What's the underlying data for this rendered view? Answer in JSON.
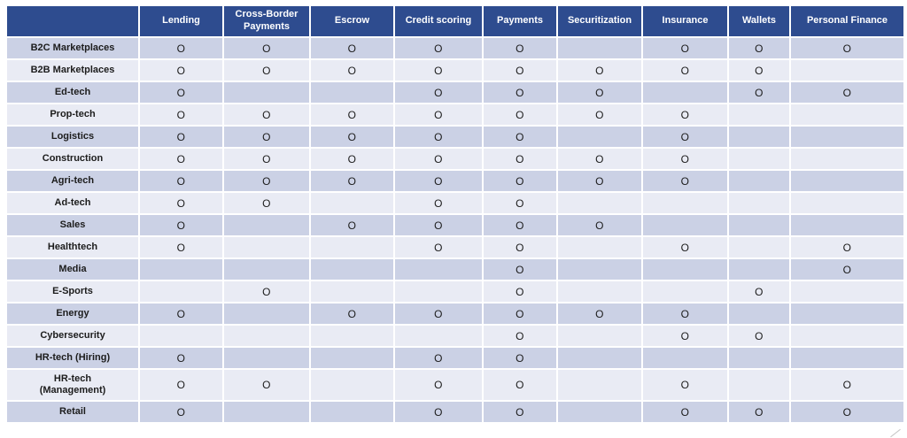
{
  "theme": {
    "header_bg": "#2E4C8F",
    "header_text": "#FFFFFF",
    "row_band_dark": "#CBD1E5",
    "row_band_light": "#E9EBF4",
    "cell_text": "#1C1C1C",
    "grid_gap": "#FFFFFF"
  },
  "table": {
    "mark": "O",
    "corner_label": "",
    "columns": [
      "Lending",
      "Cross-Border Payments",
      "Escrow",
      "Credit scoring",
      "Payments",
      "Securitization",
      "Insurance",
      "Wallets",
      "Personal Finance"
    ],
    "rows": [
      {
        "label": "B2C Marketplaces",
        "cells": [
          1,
          1,
          1,
          1,
          1,
          0,
          1,
          1,
          1
        ]
      },
      {
        "label": "B2B Marketplaces",
        "cells": [
          1,
          1,
          1,
          1,
          1,
          1,
          1,
          1,
          0
        ]
      },
      {
        "label": "Ed-tech",
        "cells": [
          1,
          0,
          0,
          1,
          1,
          1,
          0,
          1,
          1
        ]
      },
      {
        "label": "Prop-tech",
        "cells": [
          1,
          1,
          1,
          1,
          1,
          1,
          1,
          0,
          0
        ]
      },
      {
        "label": "Logistics",
        "cells": [
          1,
          1,
          1,
          1,
          1,
          0,
          1,
          0,
          0
        ]
      },
      {
        "label": "Construction",
        "cells": [
          1,
          1,
          1,
          1,
          1,
          1,
          1,
          0,
          0
        ]
      },
      {
        "label": "Agri-tech",
        "cells": [
          1,
          1,
          1,
          1,
          1,
          1,
          1,
          0,
          0
        ]
      },
      {
        "label": "Ad-tech",
        "cells": [
          1,
          1,
          0,
          1,
          1,
          0,
          0,
          0,
          0
        ]
      },
      {
        "label": "Sales",
        "cells": [
          1,
          0,
          1,
          1,
          1,
          1,
          0,
          0,
          0
        ]
      },
      {
        "label": "Healthtech",
        "cells": [
          1,
          0,
          0,
          1,
          1,
          0,
          1,
          0,
          1
        ]
      },
      {
        "label": "Media",
        "cells": [
          0,
          0,
          0,
          0,
          1,
          0,
          0,
          0,
          1
        ]
      },
      {
        "label": "E-Sports",
        "cells": [
          0,
          1,
          0,
          0,
          1,
          0,
          0,
          1,
          0
        ]
      },
      {
        "label": "Energy",
        "cells": [
          1,
          0,
          1,
          1,
          1,
          1,
          1,
          0,
          0
        ]
      },
      {
        "label": "Cybersecurity",
        "cells": [
          0,
          0,
          0,
          0,
          1,
          0,
          1,
          1,
          0
        ]
      },
      {
        "label": "HR-tech (Hiring)",
        "cells": [
          1,
          0,
          0,
          1,
          1,
          0,
          0,
          0,
          0
        ]
      },
      {
        "label": "HR-tech (Management)",
        "cells": [
          1,
          1,
          0,
          1,
          1,
          0,
          1,
          0,
          1
        ],
        "two_line": true
      },
      {
        "label": "Retail",
        "cells": [
          1,
          0,
          0,
          1,
          1,
          0,
          1,
          1,
          1
        ]
      }
    ]
  }
}
